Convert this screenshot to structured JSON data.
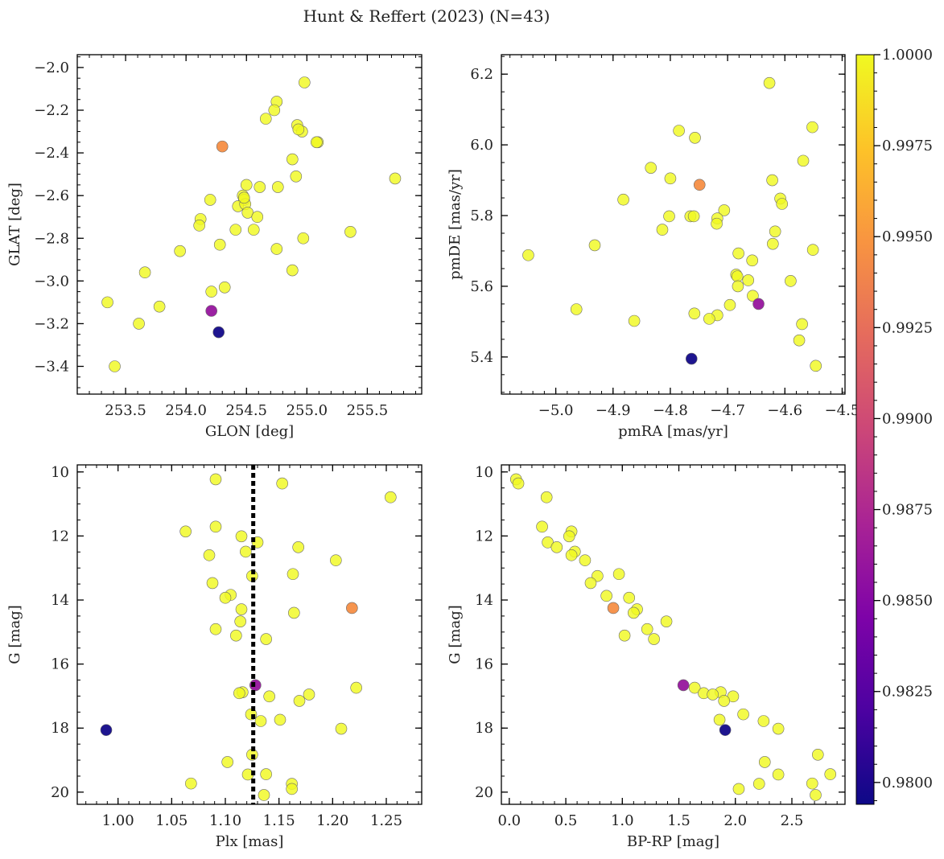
{
  "suptitle": "Hunt & Reffert (2023) (N=43)",
  "colorbar": {
    "ticks": [
      "0.9800",
      "0.9825",
      "0.9850",
      "0.9875",
      "0.9900",
      "0.9925",
      "0.9950",
      "0.9975",
      "1.0000"
    ],
    "range": [
      0.9794,
      1.0
    ],
    "colormap": "plasma"
  },
  "chart_data": [
    {
      "type": "scatter",
      "id": "gal",
      "xlabel": "GLON [deg]",
      "ylabel": "GLAT [deg]",
      "xlim": [
        253.1,
        255.95
      ],
      "ylim": [
        -3.53,
        -1.94
      ],
      "invert_y": false,
      "xticks": [
        {
          "v": 253.5,
          "label": "253.5"
        },
        {
          "v": 254.0,
          "label": "254.0"
        },
        {
          "v": 254.5,
          "label": "254.5"
        },
        {
          "v": 255.0,
          "label": "255.0"
        },
        {
          "v": 255.5,
          "label": "255.5"
        }
      ],
      "yticks": [
        {
          "v": -3.4,
          "label": "−3.4"
        },
        {
          "v": -3.2,
          "label": "−3.2"
        },
        {
          "v": -3.0,
          "label": "−3.0"
        },
        {
          "v": -2.8,
          "label": "−2.8"
        },
        {
          "v": -2.6,
          "label": "−2.6"
        },
        {
          "v": -2.4,
          "label": "−2.4"
        },
        {
          "v": -2.2,
          "label": "−2.2"
        },
        {
          "v": -2.0,
          "label": "−2.0"
        }
      ],
      "points": [
        {
          "x": 254.98,
          "y": -2.07,
          "p": 1.0
        },
        {
          "x": 254.75,
          "y": -2.16,
          "p": 1.0
        },
        {
          "x": 254.73,
          "y": -2.2,
          "p": 1.0
        },
        {
          "x": 254.66,
          "y": -2.24,
          "p": 1.0
        },
        {
          "x": 254.92,
          "y": -2.27,
          "p": 1.0
        },
        {
          "x": 254.96,
          "y": -2.3,
          "p": 1.0
        },
        {
          "x": 255.09,
          "y": -2.35,
          "p": 1.0
        },
        {
          "x": 254.3,
          "y": -2.37,
          "p": 0.9945
        },
        {
          "x": 254.88,
          "y": -2.43,
          "p": 1.0
        },
        {
          "x": 254.91,
          "y": -2.51,
          "p": 1.0
        },
        {
          "x": 255.73,
          "y": -2.52,
          "p": 1.0
        },
        {
          "x": 254.5,
          "y": -2.55,
          "p": 1.0
        },
        {
          "x": 254.61,
          "y": -2.56,
          "p": 1.0
        },
        {
          "x": 254.76,
          "y": -2.56,
          "p": 1.0
        },
        {
          "x": 254.47,
          "y": -2.6,
          "p": 1.0
        },
        {
          "x": 254.48,
          "y": -2.62,
          "p": 1.0
        },
        {
          "x": 254.2,
          "y": -2.62,
          "p": 1.0
        },
        {
          "x": 254.43,
          "y": -2.65,
          "p": 1.0
        },
        {
          "x": 254.49,
          "y": -2.64,
          "p": 1.0
        },
        {
          "x": 254.51,
          "y": -2.68,
          "p": 1.0
        },
        {
          "x": 254.59,
          "y": -2.7,
          "p": 1.0
        },
        {
          "x": 254.12,
          "y": -2.71,
          "p": 1.0
        },
        {
          "x": 254.11,
          "y": -2.74,
          "p": 1.0
        },
        {
          "x": 254.41,
          "y": -2.76,
          "p": 1.0
        },
        {
          "x": 254.56,
          "y": -2.76,
          "p": 1.0
        },
        {
          "x": 255.36,
          "y": -2.77,
          "p": 1.0
        },
        {
          "x": 254.97,
          "y": -2.8,
          "p": 1.0
        },
        {
          "x": 254.28,
          "y": -2.83,
          "p": 1.0
        },
        {
          "x": 254.75,
          "y": -2.85,
          "p": 1.0
        },
        {
          "x": 253.95,
          "y": -2.86,
          "p": 1.0
        },
        {
          "x": 254.88,
          "y": -2.95,
          "p": 1.0
        },
        {
          "x": 253.66,
          "y": -2.96,
          "p": 1.0
        },
        {
          "x": 254.32,
          "y": -3.03,
          "p": 1.0
        },
        {
          "x": 254.21,
          "y": -3.05,
          "p": 1.0
        },
        {
          "x": 253.35,
          "y": -3.1,
          "p": 1.0
        },
        {
          "x": 253.78,
          "y": -3.12,
          "p": 1.0
        },
        {
          "x": 254.21,
          "y": -3.14,
          "p": 0.986
        },
        {
          "x": 253.61,
          "y": -3.2,
          "p": 1.0
        },
        {
          "x": 254.27,
          "y": -3.24,
          "p": 0.9796
        },
        {
          "x": 253.41,
          "y": -3.4,
          "p": 1.0
        },
        {
          "x": 254.48,
          "y": -2.61,
          "p": 1.0
        },
        {
          "x": 254.93,
          "y": -2.29,
          "p": 1.0
        },
        {
          "x": 255.08,
          "y": -2.35,
          "p": 1.0
        }
      ]
    },
    {
      "type": "scatter",
      "id": "pm",
      "xlabel": "pmRA [mas/yr]",
      "ylabel": "pmDE [mas/yr]",
      "xlim": [
        -5.095,
        -4.495
      ],
      "ylim": [
        5.295,
        6.255
      ],
      "invert_y": false,
      "xticks": [
        {
          "v": -5.0,
          "label": "−5.0"
        },
        {
          "v": -4.9,
          "label": "−4.9"
        },
        {
          "v": -4.8,
          "label": "−4.8"
        },
        {
          "v": -4.7,
          "label": "−4.7"
        },
        {
          "v": -4.6,
          "label": "−4.6"
        },
        {
          "v": -4.5,
          "label": "−4.5"
        }
      ],
      "yticks": [
        {
          "v": 5.4,
          "label": "5.4"
        },
        {
          "v": 5.6,
          "label": "5.6"
        },
        {
          "v": 5.8,
          "label": "5.8"
        },
        {
          "v": 6.0,
          "label": "6.0"
        },
        {
          "v": 6.2,
          "label": "6.2"
        }
      ],
      "points": [
        {
          "x": -4.627,
          "y": 6.175,
          "p": 1.0
        },
        {
          "x": -4.552,
          "y": 6.05,
          "p": 1.0
        },
        {
          "x": -4.785,
          "y": 6.04,
          "p": 1.0
        },
        {
          "x": -4.757,
          "y": 6.02,
          "p": 1.0
        },
        {
          "x": -4.568,
          "y": 5.955,
          "p": 1.0
        },
        {
          "x": -4.834,
          "y": 5.935,
          "p": 1.0
        },
        {
          "x": -4.8,
          "y": 5.905,
          "p": 1.0
        },
        {
          "x": -4.622,
          "y": 5.9,
          "p": 1.0
        },
        {
          "x": -4.749,
          "y": 5.887,
          "p": 0.9945
        },
        {
          "x": -4.608,
          "y": 5.848,
          "p": 1.0
        },
        {
          "x": -4.882,
          "y": 5.845,
          "p": 1.0
        },
        {
          "x": -4.605,
          "y": 5.833,
          "p": 1.0
        },
        {
          "x": -4.706,
          "y": 5.815,
          "p": 1.0
        },
        {
          "x": -4.802,
          "y": 5.798,
          "p": 1.0
        },
        {
          "x": -4.765,
          "y": 5.798,
          "p": 1.0
        },
        {
          "x": -4.759,
          "y": 5.798,
          "p": 1.0
        },
        {
          "x": -4.718,
          "y": 5.792,
          "p": 1.0
        },
        {
          "x": -4.719,
          "y": 5.777,
          "p": 1.0
        },
        {
          "x": -4.814,
          "y": 5.76,
          "p": 1.0
        },
        {
          "x": -4.617,
          "y": 5.755,
          "p": 1.0
        },
        {
          "x": -4.621,
          "y": 5.72,
          "p": 1.0
        },
        {
          "x": -4.932,
          "y": 5.716,
          "p": 1.0
        },
        {
          "x": -4.551,
          "y": 5.703,
          "p": 1.0
        },
        {
          "x": -4.681,
          "y": 5.693,
          "p": 1.0
        },
        {
          "x": -5.048,
          "y": 5.688,
          "p": 1.0
        },
        {
          "x": -4.657,
          "y": 5.673,
          "p": 1.0
        },
        {
          "x": -4.685,
          "y": 5.633,
          "p": 1.0
        },
        {
          "x": -4.683,
          "y": 5.628,
          "p": 1.0
        },
        {
          "x": -4.664,
          "y": 5.617,
          "p": 1.0
        },
        {
          "x": -4.59,
          "y": 5.615,
          "p": 1.0
        },
        {
          "x": -4.682,
          "y": 5.6,
          "p": 1.0
        },
        {
          "x": -4.656,
          "y": 5.573,
          "p": 1.0
        },
        {
          "x": -4.646,
          "y": 5.55,
          "p": 0.986
        },
        {
          "x": -4.696,
          "y": 5.547,
          "p": 1.0
        },
        {
          "x": -4.964,
          "y": 5.535,
          "p": 1.0
        },
        {
          "x": -4.758,
          "y": 5.523,
          "p": 1.0
        },
        {
          "x": -4.718,
          "y": 5.518,
          "p": 1.0
        },
        {
          "x": -4.732,
          "y": 5.508,
          "p": 1.0
        },
        {
          "x": -4.863,
          "y": 5.502,
          "p": 1.0
        },
        {
          "x": -4.57,
          "y": 5.493,
          "p": 1.0
        },
        {
          "x": -4.575,
          "y": 5.447,
          "p": 1.0
        },
        {
          "x": -4.763,
          "y": 5.395,
          "p": 0.9796
        },
        {
          "x": -4.546,
          "y": 5.375,
          "p": 1.0
        }
      ]
    },
    {
      "type": "scatter",
      "id": "plx",
      "xlabel": "Plx [mas]",
      "ylabel": "G [mag]",
      "xlim": [
        0.962,
        1.283
      ],
      "ylim": [
        9.78,
        20.38
      ],
      "invert_y": true,
      "vline": {
        "x": 1.126,
        "style": "dotted",
        "color": "#000000"
      },
      "xticks": [
        {
          "v": 1.0,
          "label": "1.00"
        },
        {
          "v": 1.05,
          "label": "1.05"
        },
        {
          "v": 1.1,
          "label": "1.10"
        },
        {
          "v": 1.15,
          "label": "1.15"
        },
        {
          "v": 1.2,
          "label": "1.20"
        },
        {
          "v": 1.25,
          "label": "1.25"
        }
      ],
      "yticks": [
        {
          "v": 10,
          "label": "10"
        },
        {
          "v": 12,
          "label": "12"
        },
        {
          "v": 14,
          "label": "14"
        },
        {
          "v": 16,
          "label": "16"
        },
        {
          "v": 18,
          "label": "18"
        },
        {
          "v": 20,
          "label": "20"
        }
      ],
      "points": [
        {
          "x": 1.091,
          "y": 10.23,
          "p": 1.0
        },
        {
          "x": 1.153,
          "y": 10.36,
          "p": 1.0
        },
        {
          "x": 1.254,
          "y": 10.79,
          "p": 1.0
        },
        {
          "x": 1.091,
          "y": 11.71,
          "p": 1.0
        },
        {
          "x": 1.063,
          "y": 11.86,
          "p": 1.0
        },
        {
          "x": 1.115,
          "y": 12.01,
          "p": 1.0
        },
        {
          "x": 1.13,
          "y": 12.2,
          "p": 1.0
        },
        {
          "x": 1.168,
          "y": 12.35,
          "p": 1.0
        },
        {
          "x": 1.119,
          "y": 12.49,
          "p": 1.0
        },
        {
          "x": 1.085,
          "y": 12.6,
          "p": 1.0
        },
        {
          "x": 1.203,
          "y": 12.76,
          "p": 1.0
        },
        {
          "x": 1.163,
          "y": 13.19,
          "p": 1.0
        },
        {
          "x": 1.125,
          "y": 13.25,
          "p": 1.0
        },
        {
          "x": 1.088,
          "y": 13.47,
          "p": 1.0
        },
        {
          "x": 1.105,
          "y": 13.84,
          "p": 1.0
        },
        {
          "x": 1.1,
          "y": 13.93,
          "p": 1.0
        },
        {
          "x": 1.218,
          "y": 14.25,
          "p": 0.9945
        },
        {
          "x": 1.115,
          "y": 14.29,
          "p": 1.0
        },
        {
          "x": 1.164,
          "y": 14.4,
          "p": 1.0
        },
        {
          "x": 1.114,
          "y": 14.67,
          "p": 1.0
        },
        {
          "x": 1.091,
          "y": 14.91,
          "p": 1.0
        },
        {
          "x": 1.11,
          "y": 15.11,
          "p": 1.0
        },
        {
          "x": 1.138,
          "y": 15.22,
          "p": 1.0
        },
        {
          "x": 1.128,
          "y": 16.66,
          "p": 0.986
        },
        {
          "x": 1.222,
          "y": 16.74,
          "p": 1.0
        },
        {
          "x": 1.116,
          "y": 16.88,
          "p": 1.0
        },
        {
          "x": 1.113,
          "y": 16.91,
          "p": 1.0
        },
        {
          "x": 1.178,
          "y": 16.95,
          "p": 1.0
        },
        {
          "x": 1.141,
          "y": 17.01,
          "p": 1.0
        },
        {
          "x": 1.169,
          "y": 17.15,
          "p": 1.0
        },
        {
          "x": 1.124,
          "y": 17.57,
          "p": 1.0
        },
        {
          "x": 1.151,
          "y": 17.74,
          "p": 1.0
        },
        {
          "x": 1.133,
          "y": 17.78,
          "p": 1.0
        },
        {
          "x": 1.208,
          "y": 18.02,
          "p": 1.0
        },
        {
          "x": 0.989,
          "y": 18.06,
          "p": 0.9796
        },
        {
          "x": 1.125,
          "y": 18.83,
          "p": 1.0
        },
        {
          "x": 1.102,
          "y": 19.06,
          "p": 1.0
        },
        {
          "x": 1.121,
          "y": 19.45,
          "p": 1.0
        },
        {
          "x": 1.138,
          "y": 19.44,
          "p": 1.0
        },
        {
          "x": 1.068,
          "y": 19.73,
          "p": 1.0
        },
        {
          "x": 1.162,
          "y": 19.74,
          "p": 1.0
        },
        {
          "x": 1.162,
          "y": 19.9,
          "p": 1.0
        },
        {
          "x": 1.136,
          "y": 20.09,
          "p": 1.0
        }
      ]
    },
    {
      "type": "scatter",
      "id": "cmd",
      "xlabel": "BP-RP [mag]",
      "ylabel": "G [mag]",
      "xlim": [
        -0.07,
        2.97
      ],
      "ylim": [
        9.78,
        20.38
      ],
      "invert_y": true,
      "xticks": [
        {
          "v": 0.0,
          "label": "0.0"
        },
        {
          "v": 0.5,
          "label": "0.5"
        },
        {
          "v": 1.0,
          "label": "1.0"
        },
        {
          "v": 1.5,
          "label": "1.5"
        },
        {
          "v": 2.0,
          "label": "2.0"
        },
        {
          "v": 2.5,
          "label": "2.5"
        }
      ],
      "yticks": [
        {
          "v": 10,
          "label": "10"
        },
        {
          "v": 12,
          "label": "12"
        },
        {
          "v": 14,
          "label": "14"
        },
        {
          "v": 16,
          "label": "16"
        },
        {
          "v": 18,
          "label": "18"
        },
        {
          "v": 20,
          "label": "20"
        }
      ],
      "points": [
        {
          "x": 0.06,
          "y": 10.23,
          "p": 1.0
        },
        {
          "x": 0.08,
          "y": 10.36,
          "p": 1.0
        },
        {
          "x": 0.33,
          "y": 10.79,
          "p": 1.0
        },
        {
          "x": 0.29,
          "y": 11.71,
          "p": 1.0
        },
        {
          "x": 0.55,
          "y": 11.86,
          "p": 1.0
        },
        {
          "x": 0.53,
          "y": 12.01,
          "p": 1.0
        },
        {
          "x": 0.34,
          "y": 12.2,
          "p": 1.0
        },
        {
          "x": 0.42,
          "y": 12.35,
          "p": 1.0
        },
        {
          "x": 0.58,
          "y": 12.49,
          "p": 1.0
        },
        {
          "x": 0.55,
          "y": 12.6,
          "p": 1.0
        },
        {
          "x": 0.67,
          "y": 12.76,
          "p": 1.0
        },
        {
          "x": 0.97,
          "y": 13.19,
          "p": 1.0
        },
        {
          "x": 0.78,
          "y": 13.25,
          "p": 1.0
        },
        {
          "x": 0.72,
          "y": 13.47,
          "p": 1.0
        },
        {
          "x": 0.86,
          "y": 13.87,
          "p": 1.0
        },
        {
          "x": 1.06,
          "y": 13.93,
          "p": 1.0
        },
        {
          "x": 0.92,
          "y": 14.25,
          "p": 0.9945
        },
        {
          "x": 1.13,
          "y": 14.29,
          "p": 1.0
        },
        {
          "x": 1.1,
          "y": 14.4,
          "p": 1.0
        },
        {
          "x": 1.39,
          "y": 14.67,
          "p": 1.0
        },
        {
          "x": 1.22,
          "y": 14.91,
          "p": 1.0
        },
        {
          "x": 1.02,
          "y": 15.11,
          "p": 1.0
        },
        {
          "x": 1.28,
          "y": 15.22,
          "p": 1.0
        },
        {
          "x": 1.54,
          "y": 16.66,
          "p": 0.986
        },
        {
          "x": 1.64,
          "y": 16.74,
          "p": 1.0
        },
        {
          "x": 1.72,
          "y": 16.91,
          "p": 1.0
        },
        {
          "x": 1.87,
          "y": 16.88,
          "p": 1.0
        },
        {
          "x": 1.8,
          "y": 16.95,
          "p": 1.0
        },
        {
          "x": 1.98,
          "y": 17.01,
          "p": 1.0
        },
        {
          "x": 1.9,
          "y": 17.15,
          "p": 1.0
        },
        {
          "x": 2.07,
          "y": 17.57,
          "p": 1.0
        },
        {
          "x": 1.86,
          "y": 17.74,
          "p": 1.0
        },
        {
          "x": 2.25,
          "y": 17.78,
          "p": 1.0
        },
        {
          "x": 2.38,
          "y": 18.02,
          "p": 1.0
        },
        {
          "x": 1.91,
          "y": 18.06,
          "p": 0.9796
        },
        {
          "x": 2.73,
          "y": 18.83,
          "p": 1.0
        },
        {
          "x": 2.26,
          "y": 19.06,
          "p": 1.0
        },
        {
          "x": 2.38,
          "y": 19.45,
          "p": 1.0
        },
        {
          "x": 2.84,
          "y": 19.44,
          "p": 1.0
        },
        {
          "x": 2.68,
          "y": 19.73,
          "p": 1.0
        },
        {
          "x": 2.21,
          "y": 19.74,
          "p": 1.0
        },
        {
          "x": 2.03,
          "y": 19.9,
          "p": 1.0
        },
        {
          "x": 2.71,
          "y": 20.09,
          "p": 1.0
        }
      ]
    }
  ]
}
